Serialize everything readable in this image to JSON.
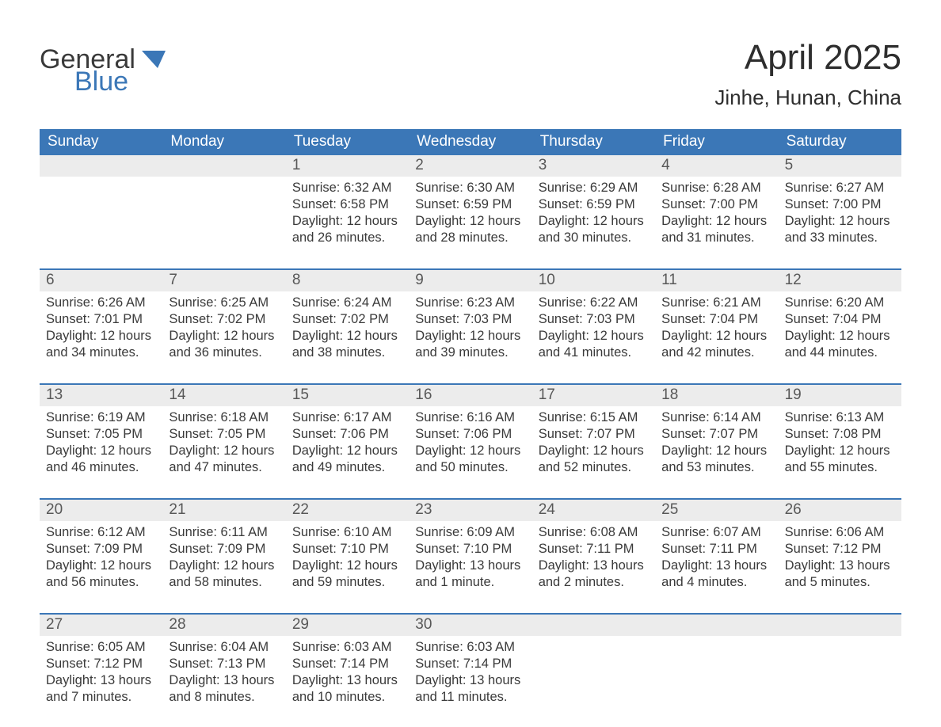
{
  "logo": {
    "word_general": "General",
    "word_blue": "Blue",
    "shape_color": "#3b77b7",
    "text_color_dark": "#3a3a3a"
  },
  "title": "April 2025",
  "subtitle": "Jinhe, Hunan, China",
  "colors": {
    "header_row_bg": "#3b77b7",
    "header_row_text": "#ffffff",
    "daynum_bg": "#ececec",
    "daynum_text": "#585858",
    "body_text": "#3a3a3a",
    "week_divider": "#3b77b7",
    "page_bg": "#ffffff"
  },
  "typography": {
    "title_fontsize": 44,
    "subtitle_fontsize": 26,
    "dow_fontsize": 19,
    "daynum_fontsize": 19,
    "body_fontsize": 16.5
  },
  "layout": {
    "columns": 7,
    "weeks": 5
  },
  "days_of_week": [
    "Sunday",
    "Monday",
    "Tuesday",
    "Wednesday",
    "Thursday",
    "Friday",
    "Saturday"
  ],
  "weeks": [
    [
      {
        "day": "",
        "sunrise": "",
        "sunset": "",
        "daylight": ""
      },
      {
        "day": "",
        "sunrise": "",
        "sunset": "",
        "daylight": ""
      },
      {
        "day": "1",
        "sunrise": "Sunrise: 6:32 AM",
        "sunset": "Sunset: 6:58 PM",
        "daylight": "Daylight: 12 hours and 26 minutes."
      },
      {
        "day": "2",
        "sunrise": "Sunrise: 6:30 AM",
        "sunset": "Sunset: 6:59 PM",
        "daylight": "Daylight: 12 hours and 28 minutes."
      },
      {
        "day": "3",
        "sunrise": "Sunrise: 6:29 AM",
        "sunset": "Sunset: 6:59 PM",
        "daylight": "Daylight: 12 hours and 30 minutes."
      },
      {
        "day": "4",
        "sunrise": "Sunrise: 6:28 AM",
        "sunset": "Sunset: 7:00 PM",
        "daylight": "Daylight: 12 hours and 31 minutes."
      },
      {
        "day": "5",
        "sunrise": "Sunrise: 6:27 AM",
        "sunset": "Sunset: 7:00 PM",
        "daylight": "Daylight: 12 hours and 33 minutes."
      }
    ],
    [
      {
        "day": "6",
        "sunrise": "Sunrise: 6:26 AM",
        "sunset": "Sunset: 7:01 PM",
        "daylight": "Daylight: 12 hours and 34 minutes."
      },
      {
        "day": "7",
        "sunrise": "Sunrise: 6:25 AM",
        "sunset": "Sunset: 7:02 PM",
        "daylight": "Daylight: 12 hours and 36 minutes."
      },
      {
        "day": "8",
        "sunrise": "Sunrise: 6:24 AM",
        "sunset": "Sunset: 7:02 PM",
        "daylight": "Daylight: 12 hours and 38 minutes."
      },
      {
        "day": "9",
        "sunrise": "Sunrise: 6:23 AM",
        "sunset": "Sunset: 7:03 PM",
        "daylight": "Daylight: 12 hours and 39 minutes."
      },
      {
        "day": "10",
        "sunrise": "Sunrise: 6:22 AM",
        "sunset": "Sunset: 7:03 PM",
        "daylight": "Daylight: 12 hours and 41 minutes."
      },
      {
        "day": "11",
        "sunrise": "Sunrise: 6:21 AM",
        "sunset": "Sunset: 7:04 PM",
        "daylight": "Daylight: 12 hours and 42 minutes."
      },
      {
        "day": "12",
        "sunrise": "Sunrise: 6:20 AM",
        "sunset": "Sunset: 7:04 PM",
        "daylight": "Daylight: 12 hours and 44 minutes."
      }
    ],
    [
      {
        "day": "13",
        "sunrise": "Sunrise: 6:19 AM",
        "sunset": "Sunset: 7:05 PM",
        "daylight": "Daylight: 12 hours and 46 minutes."
      },
      {
        "day": "14",
        "sunrise": "Sunrise: 6:18 AM",
        "sunset": "Sunset: 7:05 PM",
        "daylight": "Daylight: 12 hours and 47 minutes."
      },
      {
        "day": "15",
        "sunrise": "Sunrise: 6:17 AM",
        "sunset": "Sunset: 7:06 PM",
        "daylight": "Daylight: 12 hours and 49 minutes."
      },
      {
        "day": "16",
        "sunrise": "Sunrise: 6:16 AM",
        "sunset": "Sunset: 7:06 PM",
        "daylight": "Daylight: 12 hours and 50 minutes."
      },
      {
        "day": "17",
        "sunrise": "Sunrise: 6:15 AM",
        "sunset": "Sunset: 7:07 PM",
        "daylight": "Daylight: 12 hours and 52 minutes."
      },
      {
        "day": "18",
        "sunrise": "Sunrise: 6:14 AM",
        "sunset": "Sunset: 7:07 PM",
        "daylight": "Daylight: 12 hours and 53 minutes."
      },
      {
        "day": "19",
        "sunrise": "Sunrise: 6:13 AM",
        "sunset": "Sunset: 7:08 PM",
        "daylight": "Daylight: 12 hours and 55 minutes."
      }
    ],
    [
      {
        "day": "20",
        "sunrise": "Sunrise: 6:12 AM",
        "sunset": "Sunset: 7:09 PM",
        "daylight": "Daylight: 12 hours and 56 minutes."
      },
      {
        "day": "21",
        "sunrise": "Sunrise: 6:11 AM",
        "sunset": "Sunset: 7:09 PM",
        "daylight": "Daylight: 12 hours and 58 minutes."
      },
      {
        "day": "22",
        "sunrise": "Sunrise: 6:10 AM",
        "sunset": "Sunset: 7:10 PM",
        "daylight": "Daylight: 12 hours and 59 minutes."
      },
      {
        "day": "23",
        "sunrise": "Sunrise: 6:09 AM",
        "sunset": "Sunset: 7:10 PM",
        "daylight": "Daylight: 13 hours and 1 minute."
      },
      {
        "day": "24",
        "sunrise": "Sunrise: 6:08 AM",
        "sunset": "Sunset: 7:11 PM",
        "daylight": "Daylight: 13 hours and 2 minutes."
      },
      {
        "day": "25",
        "sunrise": "Sunrise: 6:07 AM",
        "sunset": "Sunset: 7:11 PM",
        "daylight": "Daylight: 13 hours and 4 minutes."
      },
      {
        "day": "26",
        "sunrise": "Sunrise: 6:06 AM",
        "sunset": "Sunset: 7:12 PM",
        "daylight": "Daylight: 13 hours and 5 minutes."
      }
    ],
    [
      {
        "day": "27",
        "sunrise": "Sunrise: 6:05 AM",
        "sunset": "Sunset: 7:12 PM",
        "daylight": "Daylight: 13 hours and 7 minutes."
      },
      {
        "day": "28",
        "sunrise": "Sunrise: 6:04 AM",
        "sunset": "Sunset: 7:13 PM",
        "daylight": "Daylight: 13 hours and 8 minutes."
      },
      {
        "day": "29",
        "sunrise": "Sunrise: 6:03 AM",
        "sunset": "Sunset: 7:14 PM",
        "daylight": "Daylight: 13 hours and 10 minutes."
      },
      {
        "day": "30",
        "sunrise": "Sunrise: 6:03 AM",
        "sunset": "Sunset: 7:14 PM",
        "daylight": "Daylight: 13 hours and 11 minutes."
      },
      {
        "day": "",
        "sunrise": "",
        "sunset": "",
        "daylight": ""
      },
      {
        "day": "",
        "sunrise": "",
        "sunset": "",
        "daylight": ""
      },
      {
        "day": "",
        "sunrise": "",
        "sunset": "",
        "daylight": ""
      }
    ]
  ]
}
